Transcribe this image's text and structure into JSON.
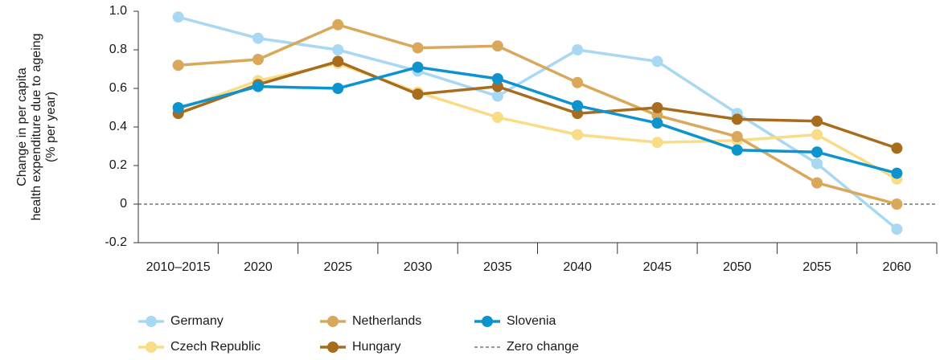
{
  "chart_data": {
    "type": "line",
    "ylabel": [
      "Change in per capita",
      "health expenditure due to ageing",
      "(% per year)"
    ],
    "categories": [
      "2010–2015",
      "2020",
      "2025",
      "2030",
      "2035",
      "2040",
      "2045",
      "2050",
      "2055",
      "2060"
    ],
    "series": [
      {
        "name": "Germany",
        "color": "#a9d8f2",
        "values": [
          0.97,
          0.86,
          0.8,
          0.69,
          0.56,
          0.8,
          0.74,
          0.47,
          0.21,
          -0.13
        ]
      },
      {
        "name": "Czech Republic",
        "color": "#f9dc86",
        "values": [
          0.49,
          0.64,
          0.73,
          0.58,
          0.45,
          0.36,
          0.32,
          0.33,
          0.36,
          0.13
        ]
      },
      {
        "name": "Netherlands",
        "color": "#d9a85a",
        "values": [
          0.72,
          0.75,
          0.93,
          0.81,
          0.82,
          0.63,
          0.46,
          0.35,
          0.11,
          0.0
        ]
      },
      {
        "name": "Hungary",
        "color": "#a86c1e",
        "values": [
          0.47,
          0.62,
          0.74,
          0.57,
          0.61,
          0.47,
          0.5,
          0.44,
          0.43,
          0.29
        ]
      },
      {
        "name": "Slovenia",
        "color": "#0d94cf",
        "values": [
          0.5,
          0.61,
          0.6,
          0.71,
          0.65,
          0.51,
          0.42,
          0.28,
          0.27,
          0.16
        ]
      }
    ],
    "reference_line": {
      "value": 0,
      "label": "Zero change"
    },
    "ylim": [
      -0.2,
      1.0
    ],
    "yticks": [
      -0.2,
      0,
      0.2,
      0.4,
      0.6,
      0.8,
      {
        "value": 1,
        "label": "1.0"
      }
    ],
    "grid": false
  }
}
